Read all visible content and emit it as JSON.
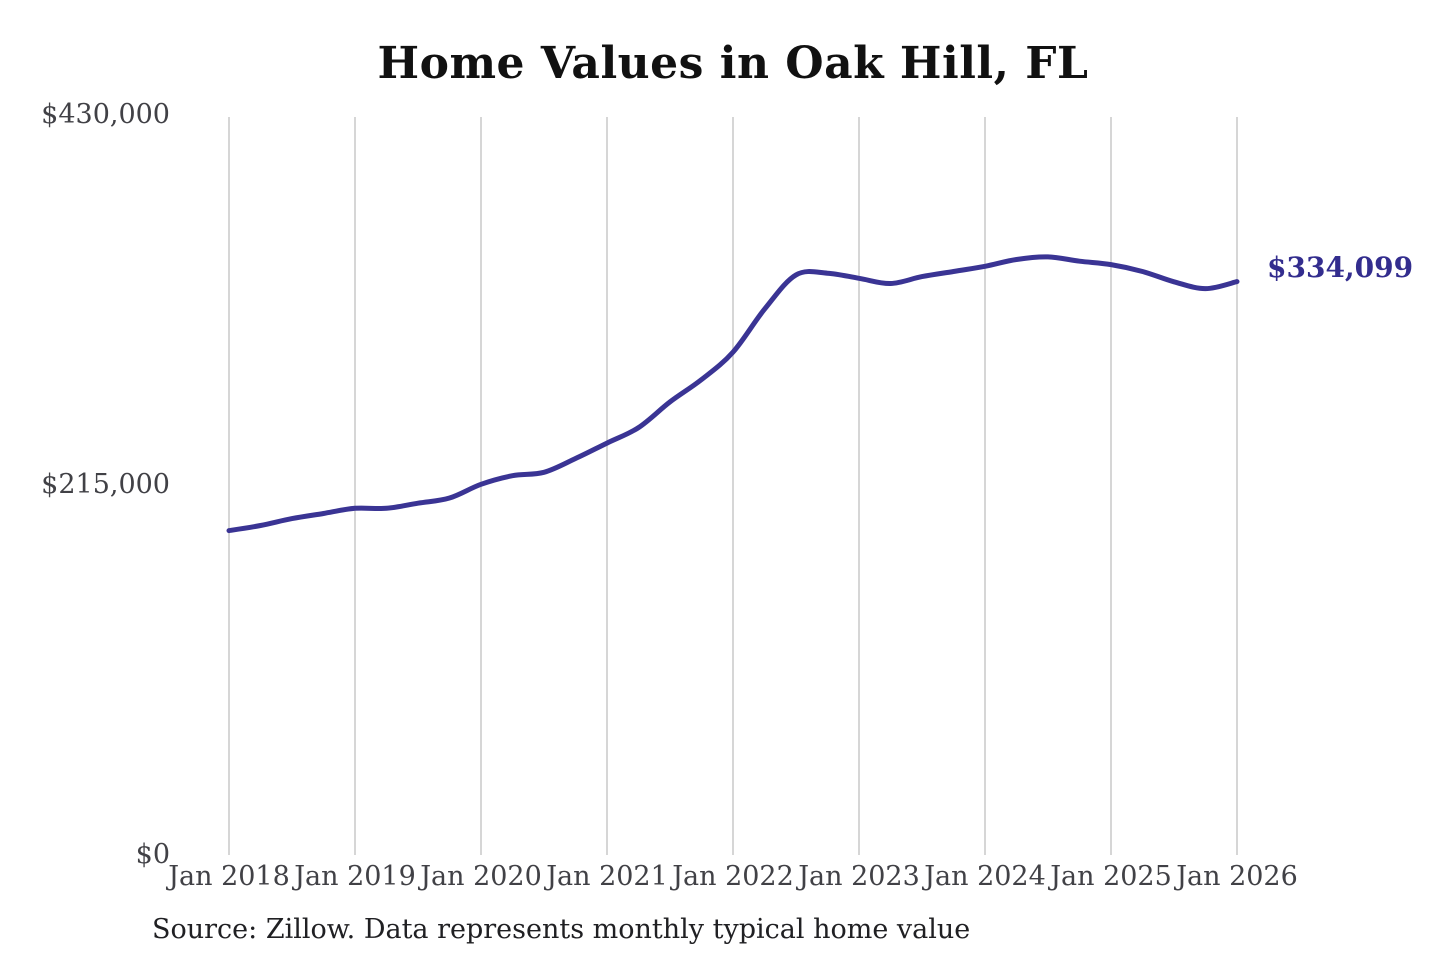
{
  "title": "Home Values in Oak Hill, FL",
  "source_note": "Source: Zillow. Data represents monthly typical home value",
  "colors": {
    "line": "#3a3494",
    "annotation": "#332d8e",
    "gridline": "#c9c9c9",
    "tick_label": "#414146",
    "title": "#111111",
    "background": "#ffffff"
  },
  "chart_data": {
    "type": "line",
    "title": "Home Values in Oak Hill, FL",
    "xlabel": "",
    "ylabel": "",
    "ylim": [
      0,
      430000
    ],
    "grid": "vertical-only",
    "legend": "none",
    "x": [
      "Jan 2018",
      "Apr 2018",
      "Jul 2018",
      "Oct 2018",
      "Jan 2019",
      "Apr 2019",
      "Jul 2019",
      "Oct 2019",
      "Jan 2020",
      "Apr 2020",
      "Jul 2020",
      "Oct 2020",
      "Jan 2021",
      "Apr 2021",
      "Jul 2021",
      "Oct 2021",
      "Jan 2022",
      "Apr 2022",
      "Jul 2022",
      "Oct 2022",
      "Jan 2023",
      "Apr 2023",
      "Jul 2023",
      "Oct 2023",
      "Jan 2024",
      "Apr 2024",
      "Jul 2024",
      "Oct 2024",
      "Jan 2025",
      "Apr 2025",
      "Jul 2025",
      "Oct 2025",
      "Jan 2026"
    ],
    "values": [
      189000,
      192000,
      196000,
      199000,
      202000,
      202000,
      205000,
      208000,
      216000,
      221000,
      223000,
      231000,
      240000,
      249000,
      264000,
      277000,
      293000,
      318000,
      338000,
      339000,
      336000,
      333000,
      337000,
      340000,
      343000,
      347000,
      348500,
      346000,
      344000,
      340000,
      334000,
      330000,
      334099
    ],
    "x_tick_labels": [
      "Jan 2018",
      "Jan 2019",
      "Jan 2020",
      "Jan 2021",
      "Jan 2022",
      "Jan 2023",
      "Jan 2024",
      "Jan 2025",
      "Jan 2026"
    ],
    "y_tick_labels": [
      "$0",
      "$215,000",
      "$430,000"
    ],
    "annotation": {
      "text": "$334,099",
      "position": "right-of-last-point"
    }
  }
}
